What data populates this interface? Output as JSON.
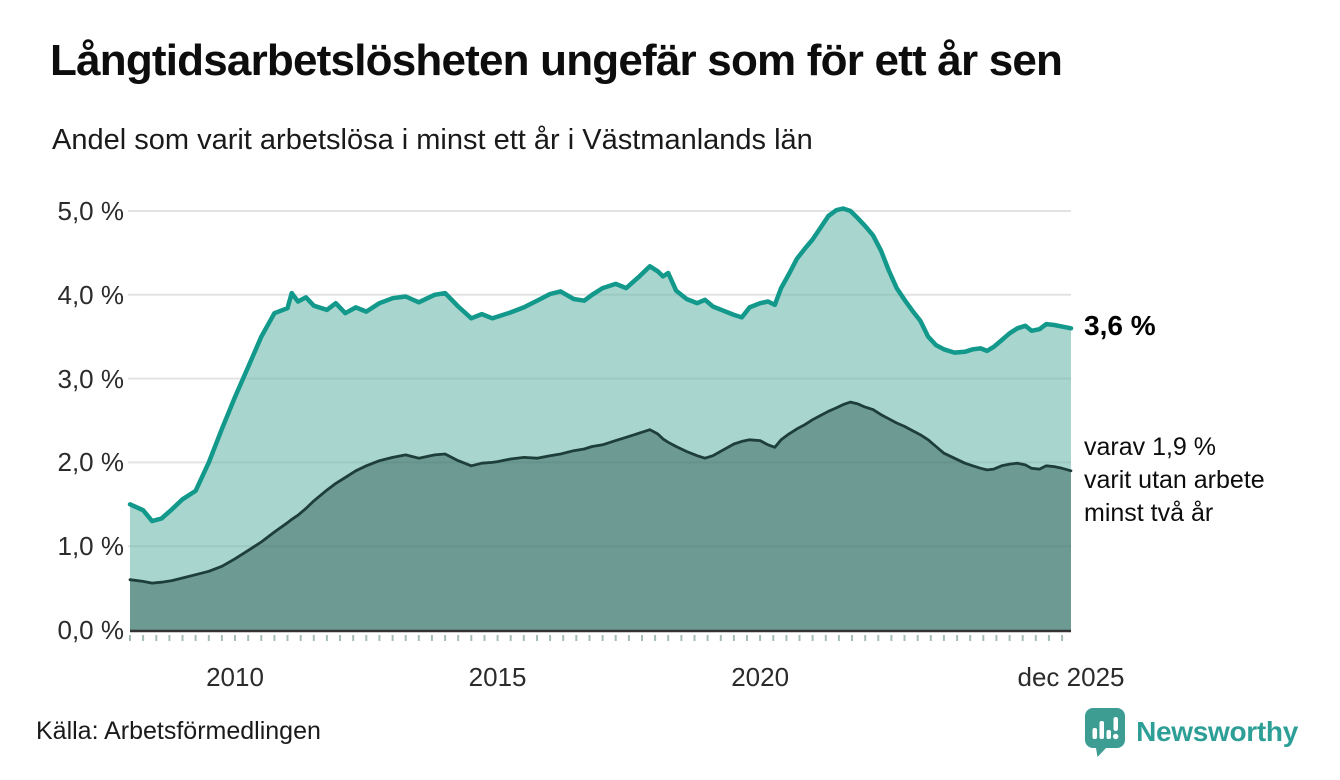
{
  "header": {
    "title": "Långtidsarbetslösheten ungefär som för ett år sen",
    "subtitle": "Andel som varit arbetslösa i minst ett år i Västmanlands län"
  },
  "annotations": {
    "latest_total": "3,6 %",
    "two_year_lines": [
      "varav 1,9 %",
      "varit utan arbete",
      "minst två år"
    ]
  },
  "footer": {
    "source": "Källa: Arbetsförmedlingen",
    "brand": "Newsworthy",
    "brand_color": "#2e9f96"
  },
  "chart_data": {
    "type": "area",
    "title": "Långtidsarbetslösheten ungefär som för ett år sen",
    "subtitle": "Andel som varit arbetslösa i minst ett år i Västmanlands län",
    "xlabel": "",
    "ylabel": "",
    "x_range": [
      2008.0,
      2025.92
    ],
    "ylim": [
      0,
      5.3
    ],
    "grid": true,
    "legend": "none",
    "minor_tick_interval": 0.25,
    "y_ticks": [
      {
        "value": 0,
        "label": "0,0 %"
      },
      {
        "value": 1,
        "label": "1,0 %"
      },
      {
        "value": 2,
        "label": "2,0 %"
      },
      {
        "value": 3,
        "label": "3,0 %"
      },
      {
        "value": 4,
        "label": "4,0 %"
      },
      {
        "value": 5,
        "label": "5,0 %"
      }
    ],
    "x_ticks": [
      {
        "value": 2010,
        "label": "2010"
      },
      {
        "value": 2015,
        "label": "2015"
      },
      {
        "value": 2020,
        "label": "2020"
      },
      {
        "value": 2025.92,
        "label": "dec 2025"
      }
    ],
    "style": {
      "grid_color": "#e3e3e3",
      "axis_color": "#333333",
      "tick_color": "#a3bdb8"
    },
    "series": [
      {
        "name": "Andel arbetslösa minst ett år",
        "latest_label": "3,6 %",
        "latest_value": 3.6,
        "color": "#12998b",
        "fill": "rgba(100,180,168,0.56)",
        "line_width": 4.5
      },
      {
        "name": "varav arbetslösa minst två år",
        "latest_label": "1,9 %",
        "latest_value": 1.9,
        "color": "#1e3e39",
        "fill": "rgba(42,88,80,0.47)",
        "line_width": 2.8
      }
    ],
    "points_format": [
      "year",
      "minst_ett_ar_pct",
      "minst_tva_ar_pct"
    ],
    "points": [
      [
        2008.0,
        1.5,
        0.6
      ],
      [
        2008.25,
        1.43,
        0.58
      ],
      [
        2008.42,
        1.3,
        0.56
      ],
      [
        2008.6,
        1.33,
        0.57
      ],
      [
        2008.8,
        1.44,
        0.59
      ],
      [
        2009.0,
        1.56,
        0.62
      ],
      [
        2009.25,
        1.66,
        0.66
      ],
      [
        2009.5,
        2.0,
        0.7
      ],
      [
        2009.75,
        2.4,
        0.76
      ],
      [
        2010.0,
        2.78,
        0.85
      ],
      [
        2010.25,
        3.14,
        0.95
      ],
      [
        2010.5,
        3.5,
        1.05
      ],
      [
        2010.75,
        3.78,
        1.17
      ],
      [
        2011.0,
        3.84,
        1.28
      ],
      [
        2011.08,
        4.02,
        1.32
      ],
      [
        2011.2,
        3.92,
        1.37
      ],
      [
        2011.35,
        3.97,
        1.45
      ],
      [
        2011.5,
        3.87,
        1.54
      ],
      [
        2011.75,
        3.82,
        1.67
      ],
      [
        2011.92,
        3.9,
        1.75
      ],
      [
        2012.1,
        3.78,
        1.82
      ],
      [
        2012.3,
        3.85,
        1.9
      ],
      [
        2012.5,
        3.8,
        1.96
      ],
      [
        2012.75,
        3.9,
        2.02
      ],
      [
        2013.0,
        3.96,
        2.06
      ],
      [
        2013.25,
        3.98,
        2.09
      ],
      [
        2013.5,
        3.91,
        2.05
      ],
      [
        2013.8,
        4.0,
        2.09
      ],
      [
        2014.0,
        4.02,
        2.1
      ],
      [
        2014.25,
        3.86,
        2.02
      ],
      [
        2014.5,
        3.72,
        1.96
      ],
      [
        2014.7,
        3.77,
        1.99
      ],
      [
        2014.9,
        3.72,
        2.0
      ],
      [
        2015.0,
        3.74,
        2.01
      ],
      [
        2015.25,
        3.79,
        2.04
      ],
      [
        2015.5,
        3.85,
        2.06
      ],
      [
        2015.75,
        3.93,
        2.05
      ],
      [
        2016.0,
        4.01,
        2.08
      ],
      [
        2016.2,
        4.04,
        2.1
      ],
      [
        2016.45,
        3.95,
        2.14
      ],
      [
        2016.65,
        3.93,
        2.16
      ],
      [
        2016.8,
        4.0,
        2.19
      ],
      [
        2017.0,
        4.08,
        2.21
      ],
      [
        2017.25,
        4.13,
        2.26
      ],
      [
        2017.45,
        4.08,
        2.3
      ],
      [
        2017.7,
        4.22,
        2.35
      ],
      [
        2017.9,
        4.34,
        2.39
      ],
      [
        2018.05,
        4.28,
        2.34
      ],
      [
        2018.15,
        4.22,
        2.28
      ],
      [
        2018.25,
        4.26,
        2.24
      ],
      [
        2018.4,
        4.05,
        2.19
      ],
      [
        2018.6,
        3.95,
        2.13
      ],
      [
        2018.8,
        3.9,
        2.08
      ],
      [
        2018.95,
        3.94,
        2.05
      ],
      [
        2019.1,
        3.86,
        2.08
      ],
      [
        2019.3,
        3.81,
        2.15
      ],
      [
        2019.5,
        3.76,
        2.22
      ],
      [
        2019.65,
        3.73,
        2.25
      ],
      [
        2019.8,
        3.85,
        2.27
      ],
      [
        2020.0,
        3.9,
        2.26
      ],
      [
        2020.15,
        3.92,
        2.21
      ],
      [
        2020.28,
        3.88,
        2.18
      ],
      [
        2020.4,
        4.08,
        2.27
      ],
      [
        2020.55,
        4.25,
        2.34
      ],
      [
        2020.7,
        4.43,
        2.4
      ],
      [
        2020.85,
        4.55,
        2.45
      ],
      [
        2021.0,
        4.66,
        2.51
      ],
      [
        2021.15,
        4.8,
        2.56
      ],
      [
        2021.3,
        4.94,
        2.61
      ],
      [
        2021.45,
        5.01,
        2.65
      ],
      [
        2021.58,
        5.03,
        2.69
      ],
      [
        2021.72,
        5.0,
        2.72
      ],
      [
        2021.85,
        4.92,
        2.7
      ],
      [
        2022.0,
        4.82,
        2.66
      ],
      [
        2022.15,
        4.71,
        2.63
      ],
      [
        2022.3,
        4.53,
        2.57
      ],
      [
        2022.45,
        4.29,
        2.52
      ],
      [
        2022.6,
        4.08,
        2.47
      ],
      [
        2022.75,
        3.94,
        2.43
      ],
      [
        2022.9,
        3.81,
        2.38
      ],
      [
        2023.05,
        3.69,
        2.33
      ],
      [
        2023.2,
        3.5,
        2.27
      ],
      [
        2023.35,
        3.4,
        2.19
      ],
      [
        2023.5,
        3.35,
        2.11
      ],
      [
        2023.7,
        3.31,
        2.05
      ],
      [
        2023.9,
        3.32,
        1.99
      ],
      [
        2024.05,
        3.35,
        1.96
      ],
      [
        2024.2,
        3.36,
        1.93
      ],
      [
        2024.32,
        3.33,
        1.91
      ],
      [
        2024.45,
        3.38,
        1.92
      ],
      [
        2024.6,
        3.46,
        1.96
      ],
      [
        2024.75,
        3.54,
        1.98
      ],
      [
        2024.9,
        3.6,
        1.99
      ],
      [
        2025.05,
        3.63,
        1.97
      ],
      [
        2025.17,
        3.57,
        1.93
      ],
      [
        2025.32,
        3.59,
        1.92
      ],
      [
        2025.45,
        3.65,
        1.96
      ],
      [
        2025.6,
        3.64,
        1.95
      ],
      [
        2025.75,
        3.62,
        1.93
      ],
      [
        2025.92,
        3.6,
        1.9
      ]
    ]
  }
}
